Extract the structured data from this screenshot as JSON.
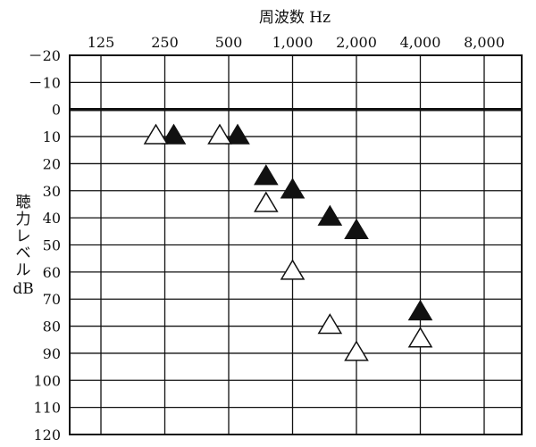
{
  "chart_data": {
    "type": "scatter",
    "title": "周波数 Hz",
    "xlabel": "周波数 Hz",
    "ylabel": "聴力レベル dB",
    "x_scale": "log",
    "y_reversed": true,
    "x_ticks": [
      "125",
      "250",
      "500",
      "1,000",
      "2,000",
      "4,000",
      "8,000"
    ],
    "x_tick_values": [
      125,
      250,
      500,
      1000,
      2000,
      4000,
      8000
    ],
    "y_ticks": [
      "－20",
      "－10",
      "0",
      "10",
      "20",
      "30",
      "40",
      "50",
      "60",
      "70",
      "80",
      "90",
      "100",
      "110",
      "120"
    ],
    "y_tick_values": [
      -20,
      -10,
      0,
      10,
      20,
      30,
      40,
      50,
      60,
      70,
      80,
      90,
      100,
      110,
      120
    ],
    "xlim": [
      90,
      11000
    ],
    "ylim": [
      -20,
      120
    ],
    "grid": true,
    "series": [
      {
        "marker": "filled-triangle",
        "points": [
          {
            "x": 250,
            "y": 10
          },
          {
            "x": 500,
            "y": 10
          },
          {
            "x": 750,
            "y": 25
          },
          {
            "x": 1000,
            "y": 30
          },
          {
            "x": 1500,
            "y": 40
          },
          {
            "x": 2000,
            "y": 45
          },
          {
            "x": 4000,
            "y": 75
          }
        ]
      },
      {
        "marker": "open-triangle",
        "points": [
          {
            "x": 250,
            "y": 10
          },
          {
            "x": 500,
            "y": 10
          },
          {
            "x": 750,
            "y": 35
          },
          {
            "x": 1000,
            "y": 60
          },
          {
            "x": 1500,
            "y": 80
          },
          {
            "x": 2000,
            "y": 90
          },
          {
            "x": 4000,
            "y": 85
          }
        ]
      }
    ],
    "colors": {
      "line": "#111111",
      "fill": "#111111",
      "open_fill": "#ffffff"
    }
  }
}
